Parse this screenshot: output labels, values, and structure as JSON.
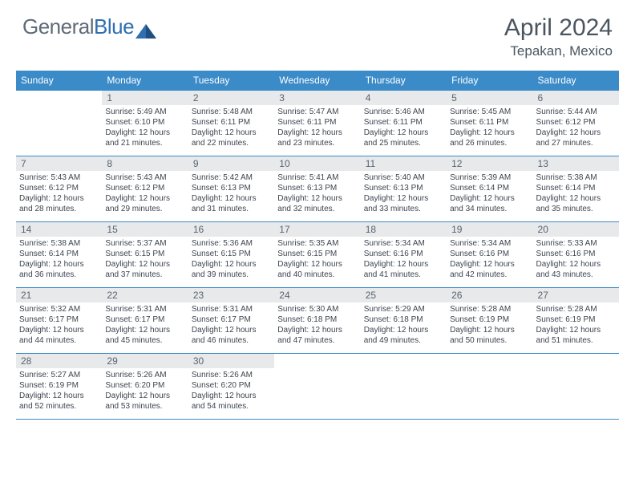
{
  "brand": {
    "part1": "General",
    "part2": "Blue"
  },
  "title": "April 2024",
  "location": "Tepakan, Mexico",
  "day_headers": [
    "Sunday",
    "Monday",
    "Tuesday",
    "Wednesday",
    "Thursday",
    "Friday",
    "Saturday"
  ],
  "style": {
    "header_bg": "#3b8bc8",
    "header_fg": "#ffffff",
    "daynum_bg": "#e7e9eb",
    "border_color": "#3b8bc8",
    "body_text": "#3d4550",
    "logo_gray": "#5f6b78",
    "logo_blue": "#2f6fb0",
    "title_color": "#4a5560"
  },
  "weeks": [
    [
      null,
      {
        "n": "1",
        "sr": "5:49 AM",
        "ss": "6:10 PM",
        "dl": "12 hours and 21 minutes."
      },
      {
        "n": "2",
        "sr": "5:48 AM",
        "ss": "6:11 PM",
        "dl": "12 hours and 22 minutes."
      },
      {
        "n": "3",
        "sr": "5:47 AM",
        "ss": "6:11 PM",
        "dl": "12 hours and 23 minutes."
      },
      {
        "n": "4",
        "sr": "5:46 AM",
        "ss": "6:11 PM",
        "dl": "12 hours and 25 minutes."
      },
      {
        "n": "5",
        "sr": "5:45 AM",
        "ss": "6:11 PM",
        "dl": "12 hours and 26 minutes."
      },
      {
        "n": "6",
        "sr": "5:44 AM",
        "ss": "6:12 PM",
        "dl": "12 hours and 27 minutes."
      }
    ],
    [
      {
        "n": "7",
        "sr": "5:43 AM",
        "ss": "6:12 PM",
        "dl": "12 hours and 28 minutes."
      },
      {
        "n": "8",
        "sr": "5:43 AM",
        "ss": "6:12 PM",
        "dl": "12 hours and 29 minutes."
      },
      {
        "n": "9",
        "sr": "5:42 AM",
        "ss": "6:13 PM",
        "dl": "12 hours and 31 minutes."
      },
      {
        "n": "10",
        "sr": "5:41 AM",
        "ss": "6:13 PM",
        "dl": "12 hours and 32 minutes."
      },
      {
        "n": "11",
        "sr": "5:40 AM",
        "ss": "6:13 PM",
        "dl": "12 hours and 33 minutes."
      },
      {
        "n": "12",
        "sr": "5:39 AM",
        "ss": "6:14 PM",
        "dl": "12 hours and 34 minutes."
      },
      {
        "n": "13",
        "sr": "5:38 AM",
        "ss": "6:14 PM",
        "dl": "12 hours and 35 minutes."
      }
    ],
    [
      {
        "n": "14",
        "sr": "5:38 AM",
        "ss": "6:14 PM",
        "dl": "12 hours and 36 minutes."
      },
      {
        "n": "15",
        "sr": "5:37 AM",
        "ss": "6:15 PM",
        "dl": "12 hours and 37 minutes."
      },
      {
        "n": "16",
        "sr": "5:36 AM",
        "ss": "6:15 PM",
        "dl": "12 hours and 39 minutes."
      },
      {
        "n": "17",
        "sr": "5:35 AM",
        "ss": "6:15 PM",
        "dl": "12 hours and 40 minutes."
      },
      {
        "n": "18",
        "sr": "5:34 AM",
        "ss": "6:16 PM",
        "dl": "12 hours and 41 minutes."
      },
      {
        "n": "19",
        "sr": "5:34 AM",
        "ss": "6:16 PM",
        "dl": "12 hours and 42 minutes."
      },
      {
        "n": "20",
        "sr": "5:33 AM",
        "ss": "6:16 PM",
        "dl": "12 hours and 43 minutes."
      }
    ],
    [
      {
        "n": "21",
        "sr": "5:32 AM",
        "ss": "6:17 PM",
        "dl": "12 hours and 44 minutes."
      },
      {
        "n": "22",
        "sr": "5:31 AM",
        "ss": "6:17 PM",
        "dl": "12 hours and 45 minutes."
      },
      {
        "n": "23",
        "sr": "5:31 AM",
        "ss": "6:17 PM",
        "dl": "12 hours and 46 minutes."
      },
      {
        "n": "24",
        "sr": "5:30 AM",
        "ss": "6:18 PM",
        "dl": "12 hours and 47 minutes."
      },
      {
        "n": "25",
        "sr": "5:29 AM",
        "ss": "6:18 PM",
        "dl": "12 hours and 49 minutes."
      },
      {
        "n": "26",
        "sr": "5:28 AM",
        "ss": "6:19 PM",
        "dl": "12 hours and 50 minutes."
      },
      {
        "n": "27",
        "sr": "5:28 AM",
        "ss": "6:19 PM",
        "dl": "12 hours and 51 minutes."
      }
    ],
    [
      {
        "n": "28",
        "sr": "5:27 AM",
        "ss": "6:19 PM",
        "dl": "12 hours and 52 minutes."
      },
      {
        "n": "29",
        "sr": "5:26 AM",
        "ss": "6:20 PM",
        "dl": "12 hours and 53 minutes."
      },
      {
        "n": "30",
        "sr": "5:26 AM",
        "ss": "6:20 PM",
        "dl": "12 hours and 54 minutes."
      },
      null,
      null,
      null,
      null
    ]
  ],
  "labels": {
    "sunrise": "Sunrise:",
    "sunset": "Sunset:",
    "daylight": "Daylight:"
  }
}
